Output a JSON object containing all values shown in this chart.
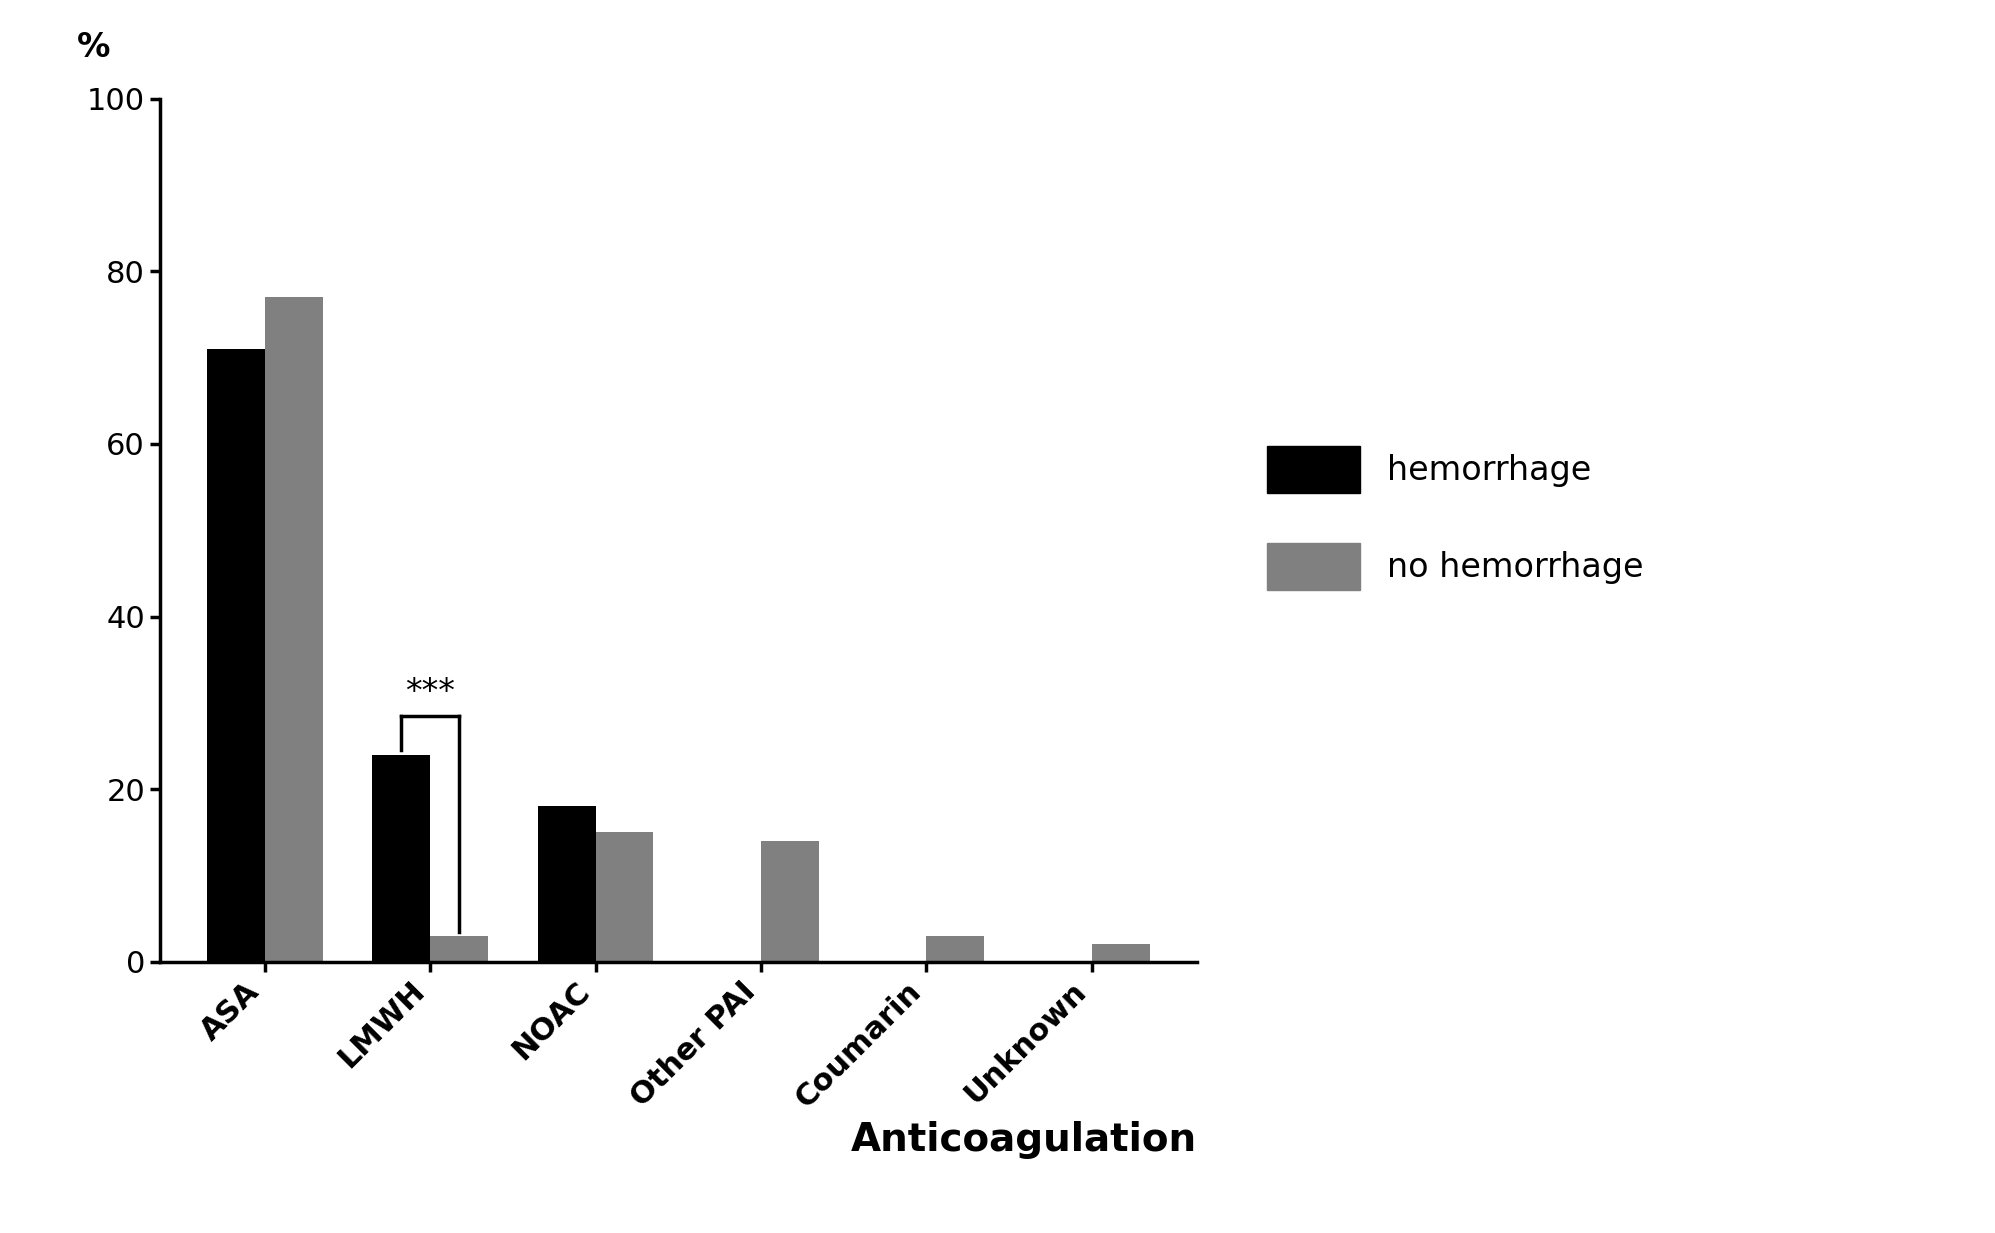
{
  "categories": [
    "ASA",
    "LMWH",
    "NOAC",
    "Other PAI",
    "Coumarin",
    "Unknown"
  ],
  "hemorrhage_values": [
    71,
    24,
    18,
    0,
    0,
    0
  ],
  "no_hemorrhage_values": [
    77,
    3,
    15,
    14,
    3,
    2
  ],
  "hemorrhage_color": "#000000",
  "no_hemorrhage_color": "#808080",
  "ylabel": "%",
  "xlabel": "Anticoagulation",
  "ylim": [
    0,
    100
  ],
  "yticks": [
    0,
    20,
    40,
    60,
    80,
    100
  ],
  "bar_width": 0.35,
  "significance_category_index": 1,
  "significance_text": "***",
  "background_color": "#ffffff",
  "legend_labels": [
    "hemorrhage",
    "no hemorrhage"
  ],
  "label_fontsize": 24,
  "tick_fontsize": 22,
  "legend_fontsize": 24,
  "xlabel_fontsize": 28,
  "xlabel_fontweight": "bold"
}
